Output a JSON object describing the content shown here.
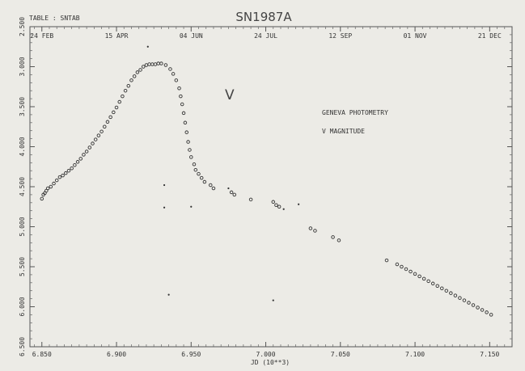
{
  "header": {
    "table_label": "TABLE : SNTAB",
    "title": "SN1987A"
  },
  "annotations": {
    "band": "V",
    "photometry": "GENEVA  PHOTOMETRY",
    "quantity": "V MAGNITUDE"
  },
  "chart_data": {
    "type": "scatter",
    "title": "SN1987A",
    "xlabel": "JD (10**3)",
    "ylabel": "",
    "xlim": [
      6842,
      7165
    ],
    "ylim": [
      2.5,
      6.5
    ],
    "y_inverted": true,
    "x_ticks": [
      "6.850",
      "6.900",
      "6.950",
      "7.000",
      "7.050",
      "7.100",
      "7.150"
    ],
    "x_tick_values": [
      6850,
      6900,
      6950,
      7000,
      7050,
      7100,
      7150
    ],
    "y_ticks": [
      "2.500",
      "3.000",
      "3.500",
      "4.000",
      "4.500",
      "5.000",
      "5.500",
      "6.000",
      "6.500"
    ],
    "y_tick_values": [
      2.5,
      3.0,
      3.5,
      4.0,
      4.5,
      5.0,
      5.5,
      6.0,
      6.5
    ],
    "top_axis_labels": [
      {
        "label": "24 FEB",
        "x": 6850
      },
      {
        "label": "15 APR",
        "x": 6900
      },
      {
        "label": "04 JUN",
        "x": 6950
      },
      {
        "label": "24 JUL",
        "x": 7000
      },
      {
        "label": "12 SEP",
        "x": 7050
      },
      {
        "label": "01 NOV",
        "x": 7100
      },
      {
        "label": "21 DEC",
        "x": 7150
      }
    ],
    "grid": false,
    "series": [
      {
        "marker": "open-circle",
        "points": [
          [
            6850,
            4.65
          ],
          [
            6851,
            4.6
          ],
          [
            6852,
            4.58
          ],
          [
            6853,
            4.55
          ],
          [
            6854,
            4.52
          ],
          [
            6856,
            4.5
          ],
          [
            6858,
            4.46
          ],
          [
            6860,
            4.42
          ],
          [
            6862,
            4.38
          ],
          [
            6864,
            4.36
          ],
          [
            6866,
            4.33
          ],
          [
            6868,
            4.3
          ],
          [
            6870,
            4.27
          ],
          [
            6872,
            4.23
          ],
          [
            6874,
            4.19
          ],
          [
            6876,
            4.15
          ],
          [
            6878,
            4.1
          ],
          [
            6880,
            4.06
          ],
          [
            6882,
            4.01
          ],
          [
            6884,
            3.96
          ],
          [
            6886,
            3.91
          ],
          [
            6888,
            3.86
          ],
          [
            6890,
            3.81
          ],
          [
            6892,
            3.75
          ],
          [
            6894,
            3.69
          ],
          [
            6896,
            3.63
          ],
          [
            6898,
            3.57
          ],
          [
            6900,
            3.51
          ],
          [
            6902,
            3.44
          ],
          [
            6904,
            3.37
          ],
          [
            6906,
            3.3
          ],
          [
            6908,
            3.24
          ],
          [
            6910,
            3.17
          ],
          [
            6912,
            3.12
          ],
          [
            6914,
            3.07
          ],
          [
            6916,
            3.04
          ],
          [
            6918,
            3.0
          ],
          [
            6920,
            2.98
          ],
          [
            6922,
            2.97
          ],
          [
            6924,
            2.97
          ],
          [
            6926,
            2.97
          ],
          [
            6928,
            2.96
          ],
          [
            6930,
            2.96
          ],
          [
            6933,
            2.98
          ],
          [
            6936,
            3.03
          ],
          [
            6938,
            3.09
          ],
          [
            6940,
            3.17
          ],
          [
            6942,
            3.27
          ],
          [
            6943,
            3.37
          ],
          [
            6944,
            3.47
          ],
          [
            6945,
            3.58
          ],
          [
            6946,
            3.7
          ],
          [
            6947,
            3.82
          ],
          [
            6948,
            3.94
          ],
          [
            6949,
            4.04
          ],
          [
            6950,
            4.13
          ],
          [
            6952,
            4.22
          ],
          [
            6953,
            4.29
          ],
          [
            6955,
            4.34
          ],
          [
            6957,
            4.39
          ],
          [
            6959,
            4.44
          ],
          [
            6963,
            4.48
          ],
          [
            6965,
            4.52
          ],
          [
            6977,
            4.57
          ],
          [
            6979,
            4.6
          ],
          [
            6990,
            4.66
          ],
          [
            7005,
            4.69
          ],
          [
            7007,
            4.73
          ],
          [
            7009,
            4.75
          ],
          [
            7030,
            5.02
          ],
          [
            7033,
            5.05
          ],
          [
            7045,
            5.13
          ],
          [
            7049,
            5.17
          ],
          [
            7081,
            5.42
          ],
          [
            7088,
            5.47
          ],
          [
            7091,
            5.5
          ],
          [
            7094,
            5.53
          ],
          [
            7097,
            5.56
          ],
          [
            7100,
            5.59
          ],
          [
            7103,
            5.62
          ],
          [
            7106,
            5.65
          ],
          [
            7109,
            5.68
          ],
          [
            7112,
            5.71
          ],
          [
            7115,
            5.74
          ],
          [
            7118,
            5.77
          ],
          [
            7121,
            5.8
          ],
          [
            7124,
            5.83
          ],
          [
            7127,
            5.86
          ],
          [
            7130,
            5.89
          ],
          [
            7133,
            5.92
          ],
          [
            7136,
            5.95
          ],
          [
            7139,
            5.98
          ],
          [
            7142,
            6.01
          ],
          [
            7145,
            6.04
          ],
          [
            7148,
            6.07
          ],
          [
            7151,
            6.1
          ]
        ]
      },
      {
        "marker": "dot",
        "points": [
          [
            6921,
            2.75
          ],
          [
            6932,
            4.48
          ],
          [
            6932,
            4.76
          ],
          [
            6935,
            5.85
          ],
          [
            6950,
            4.75
          ],
          [
            6975,
            4.52
          ],
          [
            7005,
            5.92
          ],
          [
            7012,
            4.78
          ],
          [
            7022,
            4.72
          ]
        ]
      }
    ]
  }
}
